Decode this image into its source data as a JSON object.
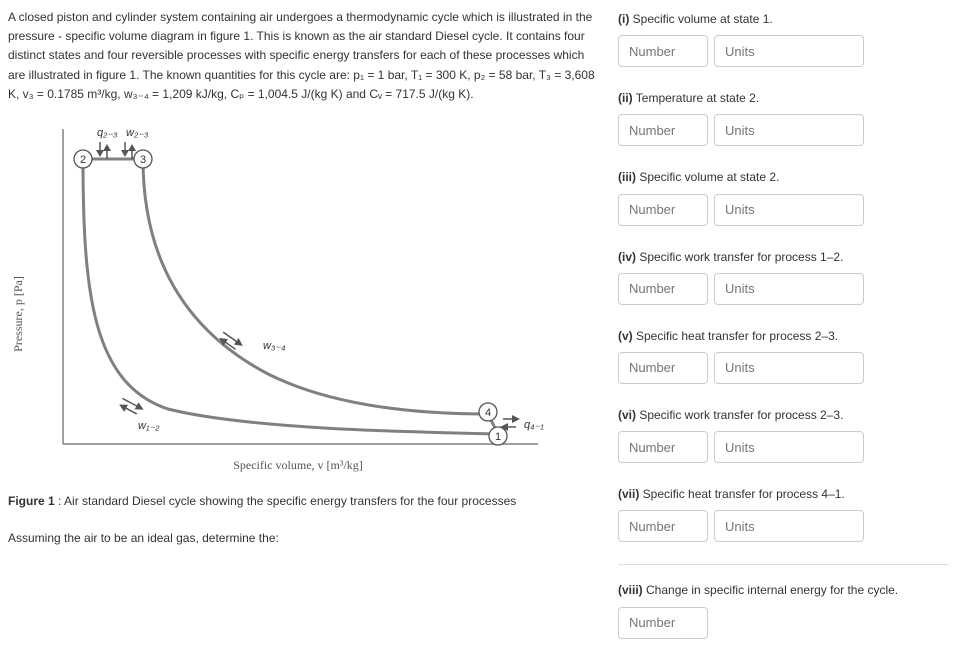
{
  "problem": {
    "paragraph": "A closed piston and cylinder system containing air undergoes a thermodynamic cycle which is illustrated in the pressure - specific volume diagram in figure 1. This is known as the air standard Diesel cycle. It contains four distinct states and four reversible processes with specific energy transfers for each of these processes which are illustrated in figure 1. The known quantities for this cycle are: p₁ = 1 bar, T₁ = 300 K, p₂ = 58 bar, T₃ = 3,608 K, v₃ = 0.1785 m³/kg, w₃₋₄ = 1,209 kJ/kg, Cₚ = 1,004.5 J/(kg K) and Cᵥ = 717.5 J/(kg K)."
  },
  "figure": {
    "ylabel": "Pressure, p [Pa]",
    "xlabel": "Specific volume, v [m³/kg]",
    "caption_bold": "Figure 1",
    "caption_rest": " : Air standard Diesel cycle showing the specific energy transfers for the four processes",
    "states": [
      "1",
      "2",
      "3",
      "4"
    ],
    "label_q23": "q₂₋₃",
    "label_w23": "w₂₋₃",
    "label_w34": "w₃₋₄",
    "label_w12": "w₁₋₂",
    "label_q41": "q₄₋₁",
    "curve_color": "#808080",
    "curve_width": 3,
    "bg": "#ffffff",
    "state_circle_stroke": "#555",
    "state_circle_fill": "#fff",
    "arrow_fill": "#888"
  },
  "assume_text": "Assuming the air to be an ideal gas, determine the:",
  "answers": [
    {
      "bold": "(i)",
      "rest": " Specific volume at state 1.",
      "num_ph": "Number",
      "unit_ph": "Units",
      "has_units": true
    },
    {
      "bold": "(ii)",
      "rest": " Temperature at state 2.",
      "num_ph": "Number",
      "unit_ph": "Units",
      "has_units": true
    },
    {
      "bold": "(iii)",
      "rest": " Specific volume at state 2.",
      "num_ph": "Number",
      "unit_ph": "Units",
      "has_units": true
    },
    {
      "bold": "(iv)",
      "rest": " Specific work transfer for process 1–2.",
      "num_ph": "Number",
      "unit_ph": "Units",
      "has_units": true
    },
    {
      "bold": "(v)",
      "rest": " Specific heat transfer for process 2–3.",
      "num_ph": "Number",
      "unit_ph": "Units",
      "has_units": true
    },
    {
      "bold": "(vi)",
      "rest": " Specific work transfer for process 2–3.",
      "num_ph": "Number",
      "unit_ph": "Units",
      "has_units": true
    },
    {
      "bold": "(vii)",
      "rest": " Specific heat transfer for process 4–1.",
      "num_ph": "Number",
      "unit_ph": "Units",
      "has_units": true
    },
    {
      "bold": "(viii)",
      "rest": " Change in specific internal energy for the cycle.",
      "num_ph": "Number",
      "unit_ph": "",
      "has_units": false
    }
  ]
}
